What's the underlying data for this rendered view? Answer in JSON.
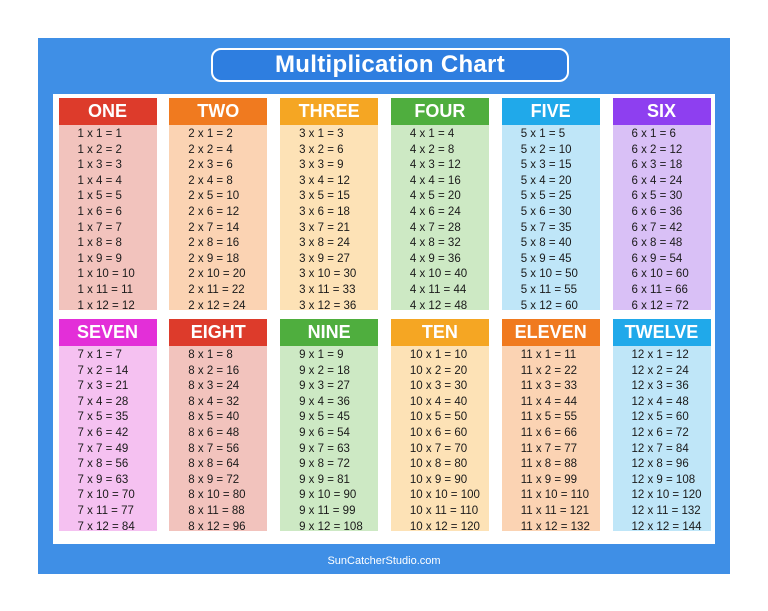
{
  "title": "Multiplication Chart",
  "footer": "SunCatcherStudio.com",
  "tables": [
    {
      "label": "ONE",
      "header_color": "#dd3b2b",
      "body_color": "#f2c3bd",
      "rows": [
        "1 x 1 = 1",
        "1 x 2 = 2",
        "1 x 3 = 3",
        "1 x 4 = 4",
        "1 x 5 = 5",
        "1 x 6 = 6",
        "1 x 7 = 7",
        "1 x 8 = 8",
        "1 x 9 = 9",
        "1 x 10 = 10",
        "1 x 11 = 11",
        "1 x 12 = 12"
      ]
    },
    {
      "label": "TWO",
      "header_color": "#f07a1f",
      "body_color": "#fbd3b3",
      "rows": [
        "2 x 1 = 2",
        "2 x 2 = 4",
        "2 x 3 = 6",
        "2 x 4 = 8",
        "2 x 5 = 10",
        "2 x 6 = 12",
        "2 x 7 = 14",
        "2 x 8 = 16",
        "2 x 9 = 18",
        "2 x 10 = 20",
        "2 x 11 = 22",
        "2 x 12 = 24"
      ]
    },
    {
      "label": "THREE",
      "header_color": "#f5a623",
      "body_color": "#fde2b6",
      "rows": [
        "3 x 1 = 3",
        "3 x 2 = 6",
        "3 x 3 = 9",
        "3 x 4 = 12",
        "3 x 5 = 15",
        "3 x 6 = 18",
        "3 x 7 = 21",
        "3 x 8 = 24",
        "3 x 9 = 27",
        "3 x 10 = 30",
        "3 x 11 = 33",
        "3 x 12 = 36"
      ]
    },
    {
      "label": "FOUR",
      "header_color": "#4fae3e",
      "body_color": "#cde9c4",
      "rows": [
        "4 x 1 = 4",
        "4 x 2 = 8",
        "4 x 3 = 12",
        "4 x 4 = 16",
        "4 x 5 = 20",
        "4 x 6 = 24",
        "4 x 7 = 28",
        "4 x 8 = 32",
        "4 x 9 = 36",
        "4 x 10 = 40",
        "4 x 11 = 44",
        "4 x 12 = 48"
      ]
    },
    {
      "label": "FIVE",
      "header_color": "#20a9ea",
      "body_color": "#bfe6f8",
      "rows": [
        "5 x 1 = 5",
        "5 x 2 = 10",
        "5 x 3 = 15",
        "5 x 4 = 20",
        "5 x 5 = 25",
        "5 x 6 = 30",
        "5 x 7 = 35",
        "5 x 8 = 40",
        "5 x 9 = 45",
        "5 x 10 = 50",
        "5 x 11 = 55",
        "5 x 12 = 60"
      ]
    },
    {
      "label": "SIX",
      "header_color": "#8e3ff0",
      "body_color": "#d9c0f6",
      "rows": [
        "6 x 1 = 6",
        "6 x 2 = 12",
        "6 x 3 = 18",
        "6 x 4 = 24",
        "6 x 5 = 30",
        "6 x 6 = 36",
        "6 x 7 = 42",
        "6 x 8 = 48",
        "6 x 9 = 54",
        "6 x 10 = 60",
        "6 x 11 = 66",
        "6 x 12 = 72"
      ]
    },
    {
      "label": "SEVEN",
      "header_color": "#e32fd8",
      "body_color": "#f5c1f1",
      "rows": [
        "7 x 1 = 7",
        "7 x 2 = 14",
        "7 x 3 = 21",
        "7 x 4 = 28",
        "7 x 5 = 35",
        "7 x 6 = 42",
        "7 x 7 = 49",
        "7 x 8 = 56",
        "7 x 9 = 63",
        "7 x 10 = 70",
        "7 x 11 = 77",
        "7 x 12 = 84"
      ]
    },
    {
      "label": "EIGHT",
      "header_color": "#dd3b2b",
      "body_color": "#f2c3bd",
      "rows": [
        "8 x 1 = 8",
        "8 x 2 = 16",
        "8 x 3 = 24",
        "8 x 4 = 32",
        "8 x 5 = 40",
        "8 x 6 = 48",
        "8 x 7 = 56",
        "8 x 8 = 64",
        "8 x 9 = 72",
        "8 x 10 = 80",
        "8 x 11 = 88",
        "8 x 12 = 96"
      ]
    },
    {
      "label": "NINE",
      "header_color": "#4fae3e",
      "body_color": "#cde9c4",
      "rows": [
        "9 x 1 = 9",
        "9 x 2 = 18",
        "9 x 3 = 27",
        "9 x 4 = 36",
        "9 x 5 = 45",
        "9 x 6 = 54",
        "9 x 7 = 63",
        "9 x 8 = 72",
        "9 x 9 = 81",
        "9 x 10 = 90",
        "9 x 11 = 99",
        "9 x 12 = 108"
      ]
    },
    {
      "label": "TEN",
      "header_color": "#f5a623",
      "body_color": "#fde2b6",
      "rows": [
        "10 x 1 = 10",
        "10 x 2 = 20",
        "10 x 3 = 30",
        "10 x 4 = 40",
        "10 x 5 = 50",
        "10 x 6 = 60",
        "10 x 7 = 70",
        "10 x 8 = 80",
        "10 x 9 = 90",
        "10 x 10 = 100",
        "10 x 11 = 110",
        "10 x 12 = 120"
      ]
    },
    {
      "label": "ELEVEN",
      "header_color": "#f07a1f",
      "body_color": "#fbd3b3",
      "rows": [
        "11 x 1 = 11",
        "11 x 2 = 22",
        "11 x 3 = 33",
        "11 x 4 = 44",
        "11 x 5 = 55",
        "11 x 6 = 66",
        "11 x 7 = 77",
        "11 x 8 = 88",
        "11 x 9 = 99",
        "11 x 10 = 110",
        "11 x 11 = 121",
        "11 x 12 = 132"
      ]
    },
    {
      "label": "TWELVE",
      "header_color": "#20a9ea",
      "body_color": "#bfe6f8",
      "rows": [
        "12 x 1 = 12",
        "12 x 2 = 24",
        "12 x 3 = 36",
        "12 x 4 = 48",
        "12 x 5 = 60",
        "12 x 6 = 72",
        "12 x 7 = 84",
        "12 x 8 = 96",
        "12 x 9 = 108",
        "12 x 10 = 120",
        "12 x 11 = 132",
        "12 x 12 = 144"
      ]
    }
  ]
}
